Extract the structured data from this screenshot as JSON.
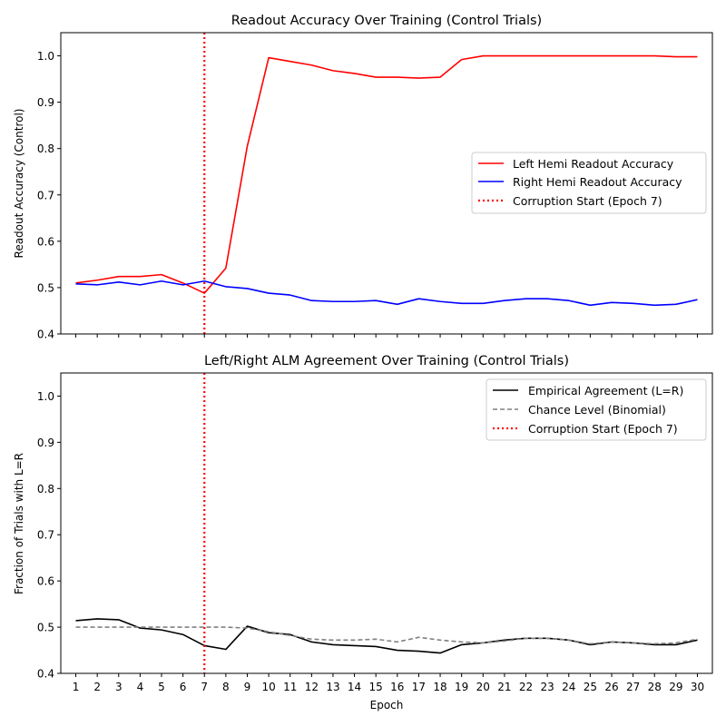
{
  "chart_data": [
    {
      "type": "line",
      "title": "Readout Accuracy Over Training (Control Trials)",
      "xlabel": "",
      "ylabel": "Readout Accuracy (Control)",
      "xlim": [
        0.3,
        30.7
      ],
      "ylim": [
        0.4,
        1.05
      ],
      "yticks": [
        0.4,
        0.5,
        0.6,
        0.7,
        0.8,
        0.9,
        1.0
      ],
      "ytick_labels": [
        "0.4",
        "0.5",
        "0.6",
        "0.7",
        "0.8",
        "0.9",
        "1.0"
      ],
      "grid": false,
      "legend_position": "center-right",
      "x": [
        1,
        2,
        3,
        4,
        5,
        6,
        7,
        8,
        9,
        10,
        11,
        12,
        13,
        14,
        15,
        16,
        17,
        18,
        19,
        20,
        21,
        22,
        23,
        24,
        25,
        26,
        27,
        28,
        29,
        30
      ],
      "series": [
        {
          "name": "Left Hemi Readout Accuracy",
          "color": "#ff0000",
          "style": "solid",
          "values": [
            0.51,
            0.516,
            0.524,
            0.524,
            0.528,
            0.51,
            0.488,
            0.542,
            0.805,
            0.996,
            0.988,
            0.98,
            0.968,
            0.962,
            0.954,
            0.954,
            0.952,
            0.954,
            0.992,
            1.0,
            1.0,
            1.0,
            1.0,
            1.0,
            1.0,
            1.0,
            1.0,
            1.0,
            0.998,
            0.998
          ]
        },
        {
          "name": "Right Hemi Readout Accuracy",
          "color": "#0000ff",
          "style": "solid",
          "values": [
            0.508,
            0.506,
            0.512,
            0.506,
            0.514,
            0.506,
            0.514,
            0.502,
            0.498,
            0.488,
            0.484,
            0.472,
            0.47,
            0.47,
            0.472,
            0.464,
            0.476,
            0.47,
            0.466,
            0.466,
            0.472,
            0.476,
            0.476,
            0.472,
            0.462,
            0.468,
            0.466,
            0.462,
            0.464,
            0.474
          ]
        }
      ],
      "vline": {
        "name": "Corruption Start (Epoch 7)",
        "x": 7,
        "color": "#ff0000",
        "style": "dotted"
      }
    },
    {
      "type": "line",
      "title": "Left/Right ALM Agreement Over Training (Control Trials)",
      "xlabel": "Epoch",
      "ylabel": "Fraction of Trials with L=R",
      "xlim": [
        0.3,
        30.7
      ],
      "ylim": [
        0.4,
        1.05
      ],
      "yticks": [
        0.4,
        0.5,
        0.6,
        0.7,
        0.8,
        0.9,
        1.0
      ],
      "ytick_labels": [
        "0.4",
        "0.5",
        "0.6",
        "0.7",
        "0.8",
        "0.9",
        "1.0"
      ],
      "xticks": [
        1,
        2,
        3,
        4,
        5,
        6,
        7,
        8,
        9,
        10,
        11,
        12,
        13,
        14,
        15,
        16,
        17,
        18,
        19,
        20,
        21,
        22,
        23,
        24,
        25,
        26,
        27,
        28,
        29,
        30
      ],
      "grid": false,
      "legend_position": "top-right",
      "x": [
        1,
        2,
        3,
        4,
        5,
        6,
        7,
        8,
        9,
        10,
        11,
        12,
        13,
        14,
        15,
        16,
        17,
        18,
        19,
        20,
        21,
        22,
        23,
        24,
        25,
        26,
        27,
        28,
        29,
        30
      ],
      "series": [
        {
          "name": "Empirical Agreement (L=R)",
          "color": "#000000",
          "style": "solid",
          "values": [
            0.514,
            0.518,
            0.516,
            0.498,
            0.494,
            0.484,
            0.46,
            0.452,
            0.502,
            0.488,
            0.484,
            0.468,
            0.462,
            0.46,
            0.458,
            0.45,
            0.448,
            0.444,
            0.462,
            0.466,
            0.472,
            0.476,
            0.476,
            0.472,
            0.462,
            0.468,
            0.466,
            0.462,
            0.462,
            0.472
          ]
        },
        {
          "name": "Chance Level (Binomial)",
          "color": "#808080",
          "style": "dashed",
          "values": [
            0.5,
            0.5,
            0.5,
            0.5,
            0.5,
            0.5,
            0.5,
            0.5,
            0.498,
            0.49,
            0.482,
            0.474,
            0.472,
            0.472,
            0.474,
            0.468,
            0.478,
            0.472,
            0.468,
            0.466,
            0.47,
            0.476,
            0.476,
            0.472,
            0.464,
            0.468,
            0.466,
            0.464,
            0.466,
            0.474
          ]
        }
      ],
      "vline": {
        "name": "Corruption Start (Epoch 7)",
        "x": 7,
        "color": "#ff0000",
        "style": "dotted"
      }
    }
  ]
}
